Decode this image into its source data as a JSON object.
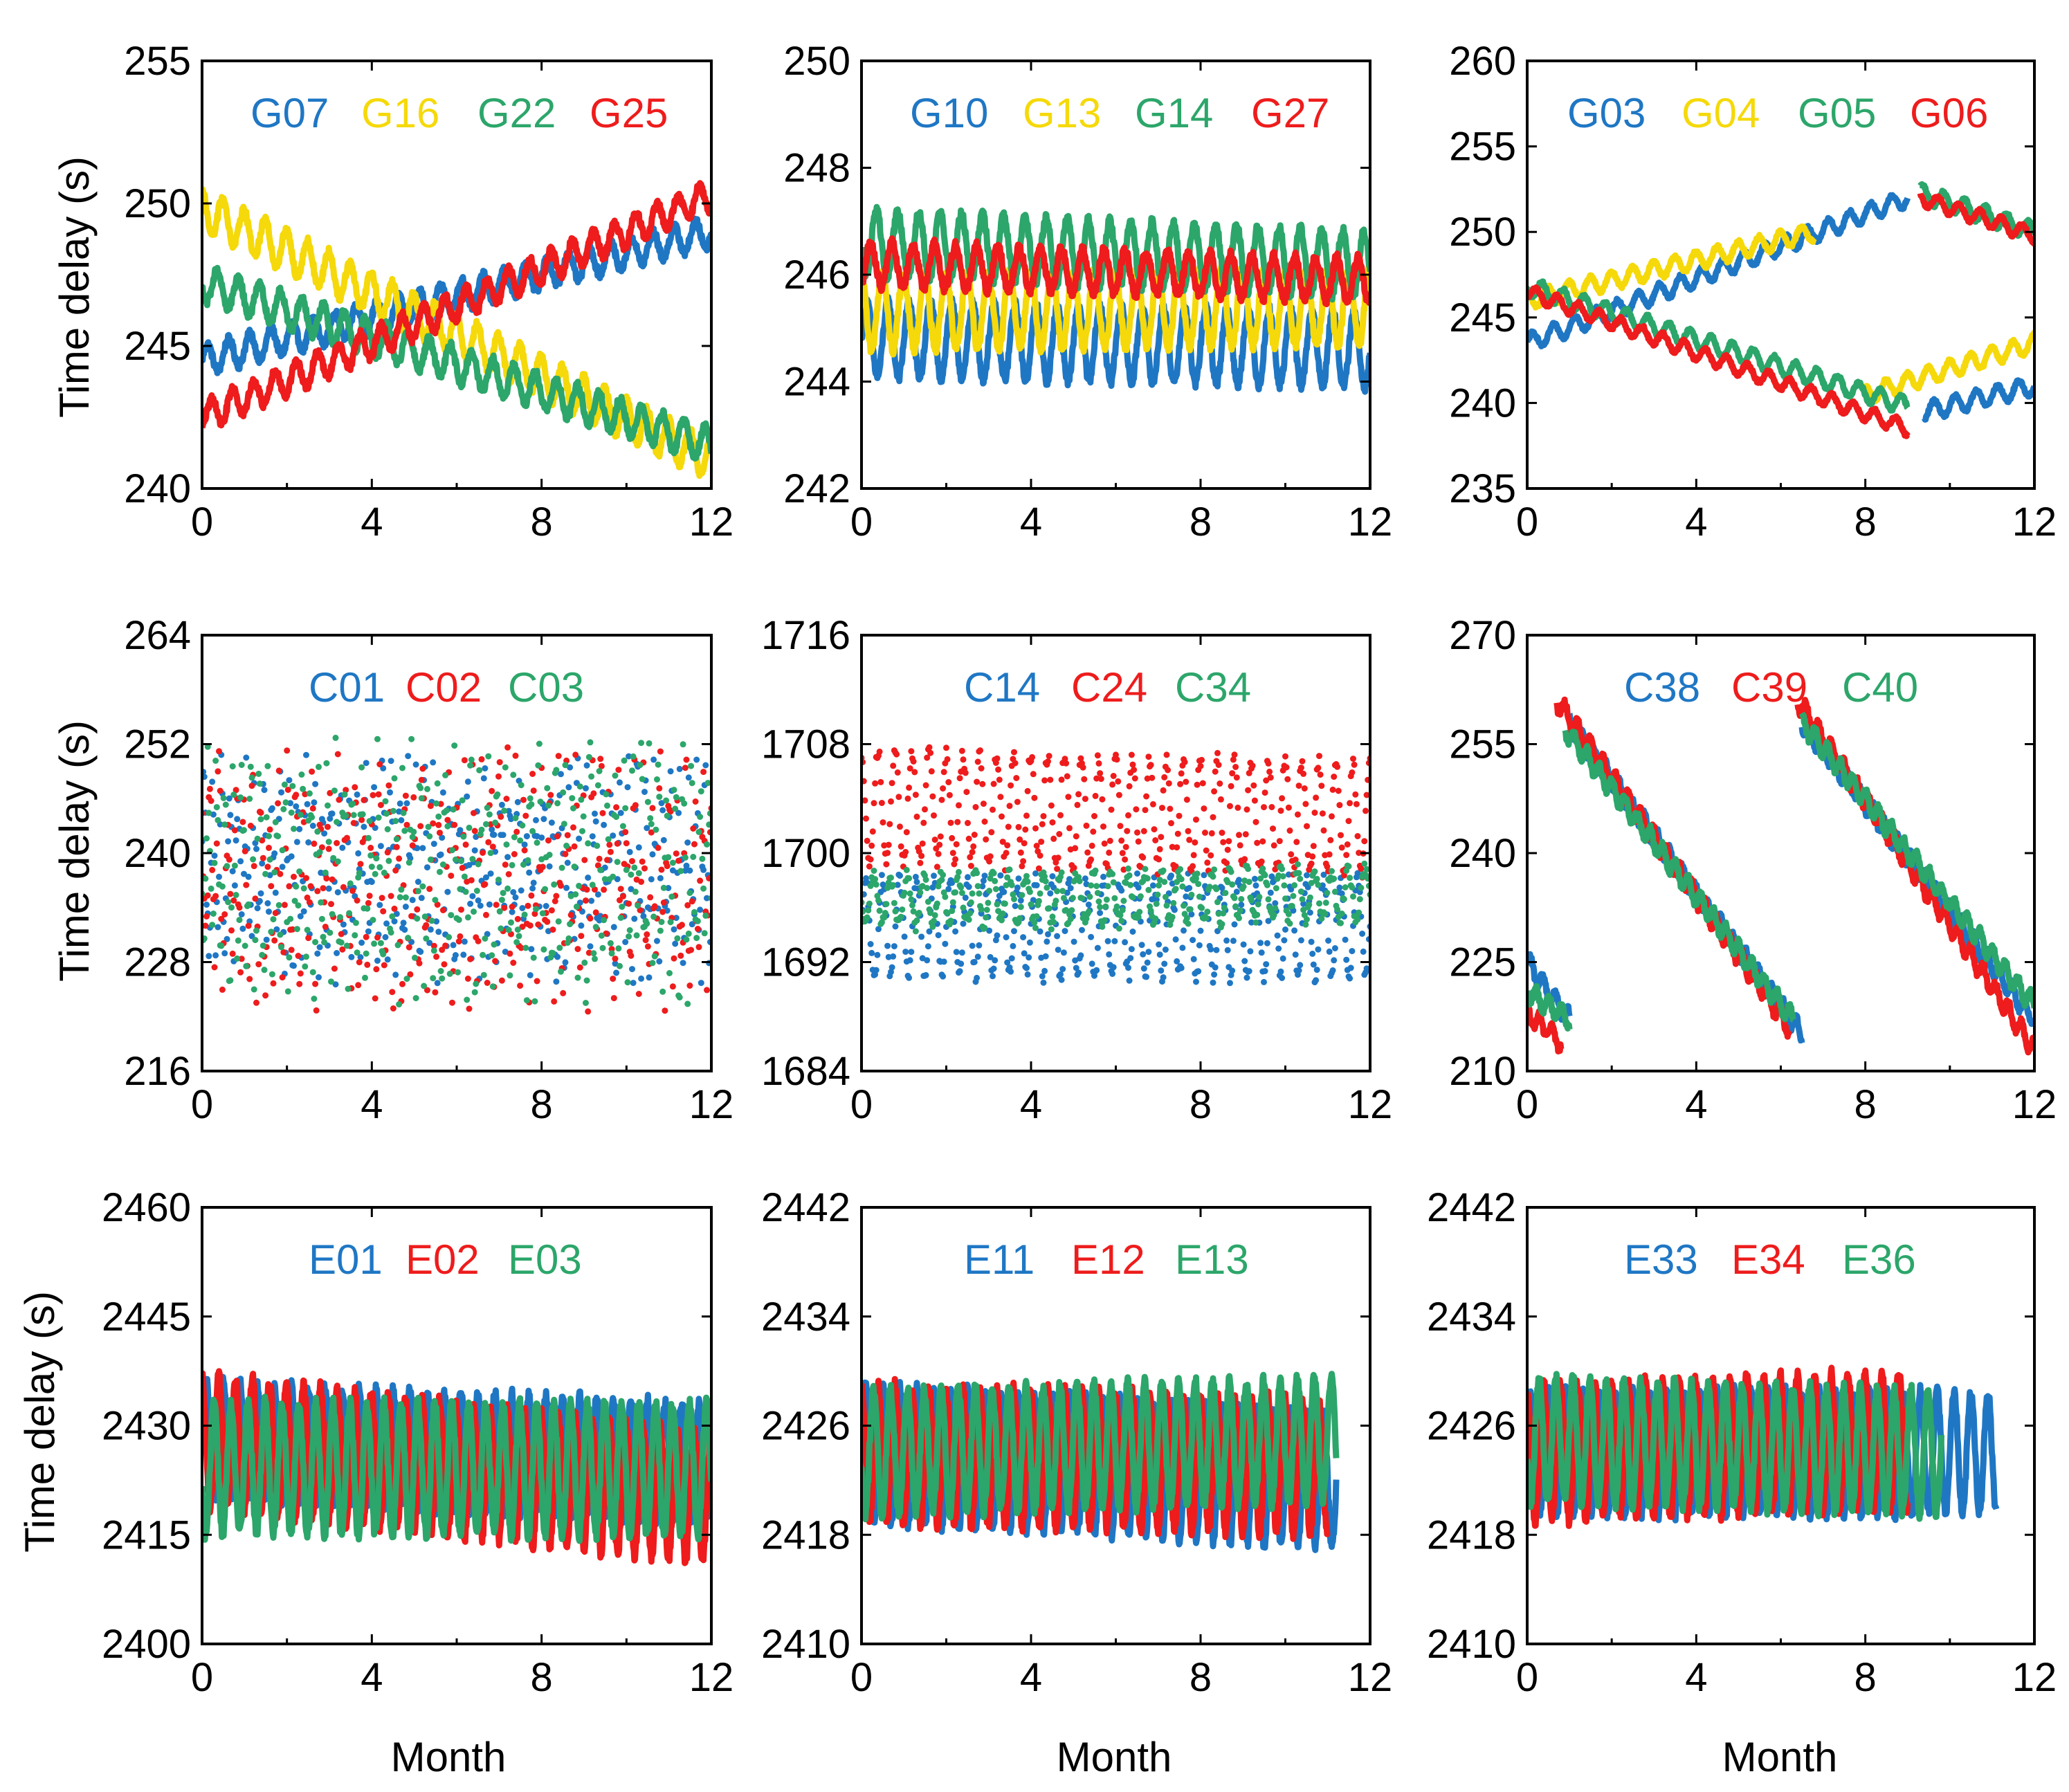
{
  "colors": {
    "blue": "#1f77c4",
    "yellow": "#f5d90a",
    "green": "#2ca66a",
    "red": "#ee1c1c"
  },
  "xlabel": "Month",
  "ylabel": "Time delay (s)",
  "chart_data": [
    {
      "type": "line",
      "ylim": [
        240,
        255
      ],
      "yticks": [
        240,
        245,
        250,
        255
      ],
      "xlim": [
        0,
        12
      ],
      "xticks": [
        0,
        4,
        8,
        12
      ],
      "series": [
        {
          "name": "G07",
          "color": "blue",
          "start": 244.5,
          "end": 249.0,
          "amp": 0.5,
          "cycles": 24,
          "noise": 0.15
        },
        {
          "name": "G16",
          "color": "yellow",
          "start": 249.8,
          "end": 241.0,
          "amp": 0.7,
          "cycles": 24,
          "noise": 0.15
        },
        {
          "name": "G22",
          "color": "green",
          "start": 247.2,
          "end": 241.5,
          "amp": 0.6,
          "cycles": 24,
          "noise": 0.15
        },
        {
          "name": "G25",
          "color": "red",
          "start": 242.5,
          "end": 250.3,
          "amp": 0.5,
          "cycles": 24,
          "noise": 0.15
        }
      ]
    },
    {
      "type": "line",
      "ylim": [
        242,
        250
      ],
      "yticks": [
        242,
        244,
        246,
        248,
        250
      ],
      "xlim": [
        0,
        12
      ],
      "xticks": [
        0,
        4,
        8,
        12
      ],
      "series": [
        {
          "name": "G10",
          "color": "blue",
          "start": 244.8,
          "end": 244.6,
          "amp": 0.7,
          "cycles": 24,
          "noise": 0.1
        },
        {
          "name": "G13",
          "color": "yellow",
          "start": 245.3,
          "end": 245.4,
          "amp": 0.7,
          "cycles": 24,
          "noise": 0.1
        },
        {
          "name": "G14",
          "color": "green",
          "start": 246.6,
          "end": 246.2,
          "amp": 0.6,
          "cycles": 24,
          "noise": 0.1
        },
        {
          "name": "G27",
          "color": "red",
          "start": 246.2,
          "end": 245.9,
          "amp": 0.4,
          "cycles": 24,
          "noise": 0.1
        }
      ]
    },
    {
      "type": "line",
      "ylim": [
        235,
        260
      ],
      "yticks": [
        235,
        240,
        245,
        250,
        255,
        260
      ],
      "xlim": [
        0,
        12
      ],
      "xticks": [
        0,
        4,
        8,
        12
      ],
      "series": [
        {
          "name": "G03",
          "color": "blue",
          "segments": [
            [
              0,
              243.5,
              9.0,
              252.0
            ],
            [
              9.4,
              239.5,
              12,
              241.0
            ]
          ],
          "amp": 0.5,
          "cycles": 24,
          "noise": 0.1
        },
        {
          "name": "G04",
          "color": "yellow",
          "segments": [
            [
              0,
              246.0,
              6.8,
              250.0
            ],
            [
              8.0,
              240.5,
              12,
              243.5
            ]
          ],
          "amp": 0.5,
          "cycles": 24,
          "noise": 0.1
        },
        {
          "name": "G05",
          "color": "green",
          "segments": [
            [
              0,
              246.8,
              9.0,
              239.8
            ],
            [
              9.3,
              252.3,
              12,
              250.0
            ]
          ],
          "amp": 0.5,
          "cycles": 24,
          "noise": 0.1
        },
        {
          "name": "G06",
          "color": "red",
          "segments": [
            [
              0,
              246.5,
              9.0,
              238.5
            ],
            [
              9.3,
              252.0,
              12,
              249.8
            ]
          ],
          "amp": 0.4,
          "cycles": 24,
          "noise": 0.1
        }
      ]
    },
    {
      "type": "scatter",
      "ylim": [
        216,
        264
      ],
      "yticks": [
        216,
        228,
        240,
        252,
        264
      ],
      "xlim": [
        0,
        12
      ],
      "xticks": [
        0,
        4,
        8,
        12
      ],
      "series": [
        {
          "name": "C01",
          "color": "blue",
          "start": 238,
          "end": 238,
          "amp": 8,
          "cycles": 60,
          "noise": 5
        },
        {
          "name": "C02",
          "color": "red",
          "start": 237,
          "end": 237,
          "amp": 9,
          "cycles": 60,
          "noise": 6
        },
        {
          "name": "C03",
          "color": "green",
          "start": 238,
          "end": 238,
          "amp": 10,
          "cycles": 60,
          "noise": 5
        }
      ]
    },
    {
      "type": "scatter",
      "ylim": [
        1684,
        1716
      ],
      "yticks": [
        1684,
        1692,
        1700,
        1708,
        1716
      ],
      "xlim": [
        0,
        12
      ],
      "xticks": [
        0,
        4,
        8,
        12
      ],
      "series": [
        {
          "name": "C14",
          "color": "blue",
          "start": 1694.5,
          "end": 1694.5,
          "amp": 3.5,
          "cycles": 30,
          "noise": 0.6
        },
        {
          "name": "C24",
          "color": "red",
          "start": 1703.5,
          "end": 1702.5,
          "amp": 4.0,
          "cycles": 30,
          "noise": 0.6
        },
        {
          "name": "C34",
          "color": "green",
          "start": 1696.5,
          "end": 1697.0,
          "amp": 1.8,
          "cycles": 30,
          "noise": 0.5
        }
      ]
    },
    {
      "type": "line",
      "ylim": [
        210,
        270
      ],
      "yticks": [
        210,
        225,
        240,
        255,
        270
      ],
      "xlim": [
        0,
        12
      ],
      "xticks": [
        0,
        4,
        8,
        12
      ],
      "series": [
        {
          "name": "C38",
          "color": "blue",
          "segments": [
            [
              0,
              225,
              1.0,
              217
            ],
            [
              1.0,
              258,
              6.5,
              215
            ],
            [
              6.5,
              258,
              12,
              217
            ]
          ],
          "amp": 1.2,
          "cycles": 40,
          "noise": 0.5
        },
        {
          "name": "C39",
          "color": "red",
          "segments": [
            [
              0,
              218,
              0.8,
              214
            ],
            [
              0.7,
              261,
              6.2,
              216
            ],
            [
              6.4,
              261,
              12,
              213
            ]
          ],
          "amp": 1.2,
          "cycles": 40,
          "noise": 0.5
        },
        {
          "name": "C40",
          "color": "green",
          "segments": [
            [
              0,
              221,
              1.0,
              217
            ],
            [
              0.9,
              257,
              6.3,
              217
            ],
            [
              6.5,
              258,
              12,
              219
            ]
          ],
          "amp": 1.2,
          "cycles": 40,
          "noise": 0.5
        }
      ]
    },
    {
      "type": "line",
      "ylim": [
        2400,
        2460
      ],
      "yticks": [
        2400,
        2415,
        2430,
        2445,
        2460
      ],
      "xlim": [
        0,
        12
      ],
      "xticks": [
        0,
        4,
        8,
        12
      ],
      "series": [
        {
          "name": "E01",
          "color": "blue",
          "start": 2428,
          "end": 2425,
          "amp": 8,
          "cycles": 30,
          "noise": 1.0
        },
        {
          "name": "E02",
          "color": "red",
          "start": 2428,
          "end": 2420,
          "amp": 9,
          "cycles": 30,
          "noise": 1.0
        },
        {
          "name": "E03",
          "color": "green",
          "start": 2424,
          "end": 2424,
          "amp": 9,
          "cycles": 30,
          "noise": 1.0
        }
      ]
    },
    {
      "type": "line",
      "ylim": [
        2410,
        2442
      ],
      "yticks": [
        2410,
        2418,
        2426,
        2434,
        2442
      ],
      "xlim": [
        0,
        12
      ],
      "xticks": [
        0,
        4,
        8,
        12
      ],
      "series": [
        {
          "name": "E11",
          "color": "blue",
          "start": 2424,
          "end": 2422,
          "amp": 5.0,
          "cycles": 30,
          "noise": 0.5,
          "xmax": 11.2
        },
        {
          "name": "E12",
          "color": "red",
          "start": 2424,
          "end": 2423,
          "amp": 5.0,
          "cycles": 30,
          "noise": 0.5,
          "xmax": 11.0
        },
        {
          "name": "E13",
          "color": "green",
          "start": 2424,
          "end": 2425,
          "amp": 4.5,
          "cycles": 30,
          "noise": 0.5,
          "xmax": 11.2
        }
      ]
    },
    {
      "type": "line",
      "ylim": [
        2410,
        2442
      ],
      "yticks": [
        2410,
        2418,
        2426,
        2434,
        2442
      ],
      "xlim": [
        0,
        12
      ],
      "xticks": [
        0,
        4,
        8,
        12
      ],
      "series": [
        {
          "name": "E33",
          "color": "blue",
          "start": 2424,
          "end": 2424,
          "amp": 4.5,
          "cycles": 30,
          "noise": 0.5,
          "xmax": 11.1
        },
        {
          "name": "E34",
          "color": "red",
          "start": 2424,
          "end": 2425,
          "amp": 5.0,
          "cycles": 30,
          "noise": 0.5,
          "xmax": 9.0
        },
        {
          "name": "E36",
          "color": "green",
          "start": 2425,
          "end": 2424,
          "amp": 4.5,
          "cycles": 30,
          "noise": 0.5,
          "xmax": 9.8
        }
      ]
    }
  ]
}
